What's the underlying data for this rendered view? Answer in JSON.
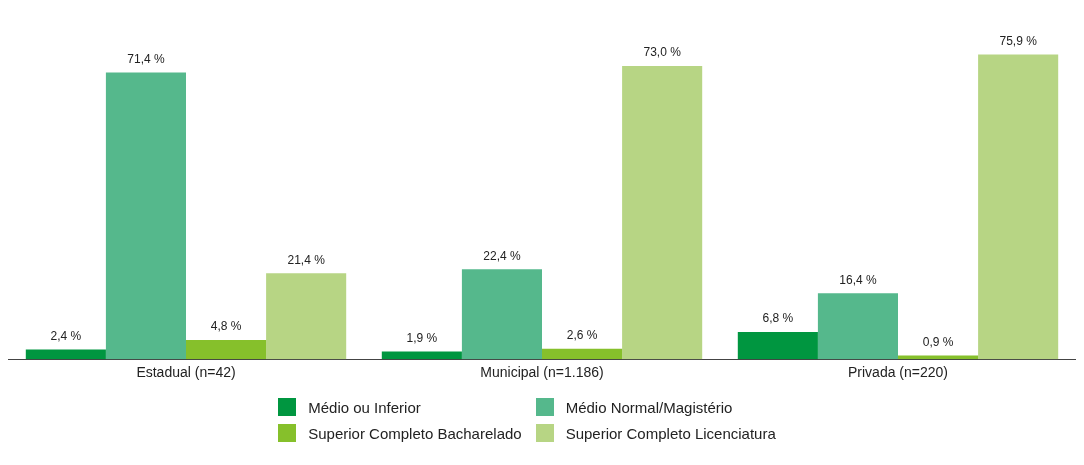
{
  "chart_data": {
    "type": "bar",
    "categories": [
      "Estadual (n=42)",
      "Municipal (n=1.186)",
      "Privada (n=220)"
    ],
    "legend": "bottom",
    "grid": false,
    "series": [
      {
        "name": "Médio ou Inferior",
        "color": "#009640",
        "values": [
          2.4,
          1.9,
          6.8
        ],
        "value_labels": [
          "2,4 %",
          "1,9 %",
          "6,8 %"
        ]
      },
      {
        "name": "Médio Normal/Magistério",
        "color": "#55b88c",
        "values": [
          71.4,
          22.4,
          16.4
        ],
        "value_labels": [
          "71,4 %",
          "22,4 %",
          "16,4 %"
        ]
      },
      {
        "name": "Superior Completo Bacharelado",
        "color": "#86c02b",
        "values": [
          4.8,
          2.6,
          0.9
        ],
        "value_labels": [
          "4,8 %",
          "2,6 %",
          "0,9 %"
        ]
      },
      {
        "name": "Superior Completo Licenciatura",
        "color": "#b7d584",
        "values": [
          21.4,
          73.0,
          75.9
        ],
        "value_labels": [
          "21,4 %",
          "73,0 %",
          "75,9 %"
        ]
      }
    ]
  }
}
